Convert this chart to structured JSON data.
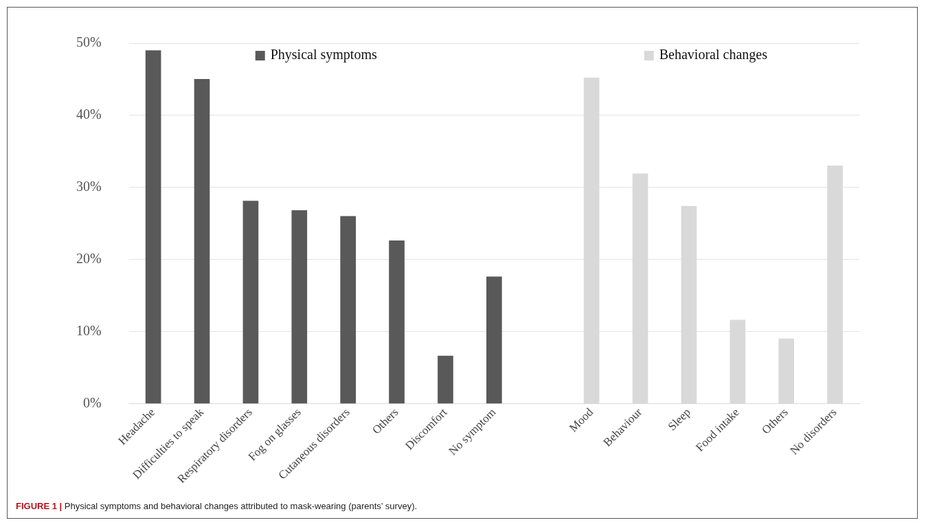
{
  "chart_data": {
    "type": "bar",
    "categories": [
      "Headache",
      "Difficulties to speak",
      "Respiratory disorders",
      "Fog on glasses",
      "Cutaneous disorders",
      "Others",
      "Discomfort",
      "No symptom",
      null,
      "Mood",
      "Behaviour",
      "Sleep",
      "Food intake",
      "Others",
      "No disorders"
    ],
    "series": [
      {
        "name": "Physical symptoms",
        "color": "#595959",
        "values": [
          49.0,
          45.0,
          28.1,
          26.8,
          26.0,
          22.6,
          6.6,
          17.6,
          null,
          null,
          null,
          null,
          null,
          null,
          null
        ]
      },
      {
        "name": "Behavioral changes",
        "color": "#d9d9d9",
        "values": [
          null,
          null,
          null,
          null,
          null,
          null,
          null,
          null,
          null,
          45.2,
          31.9,
          27.4,
          11.6,
          9.0,
          33.0
        ]
      }
    ],
    "ylim": [
      0,
      50
    ],
    "yticks": [
      {
        "value": 0,
        "label": "0%"
      },
      {
        "value": 10,
        "label": "10%"
      },
      {
        "value": 20,
        "label": "20%"
      },
      {
        "value": 30,
        "label": "30%"
      },
      {
        "value": 40,
        "label": "40%"
      },
      {
        "value": 50,
        "label": "50%"
      }
    ],
    "grid": "y",
    "legend": "top",
    "annotations": [
      "FIGURE 1 | Physical symptoms and behavioral changes attributed to mask-wearing (parents’ survey)."
    ]
  }
}
